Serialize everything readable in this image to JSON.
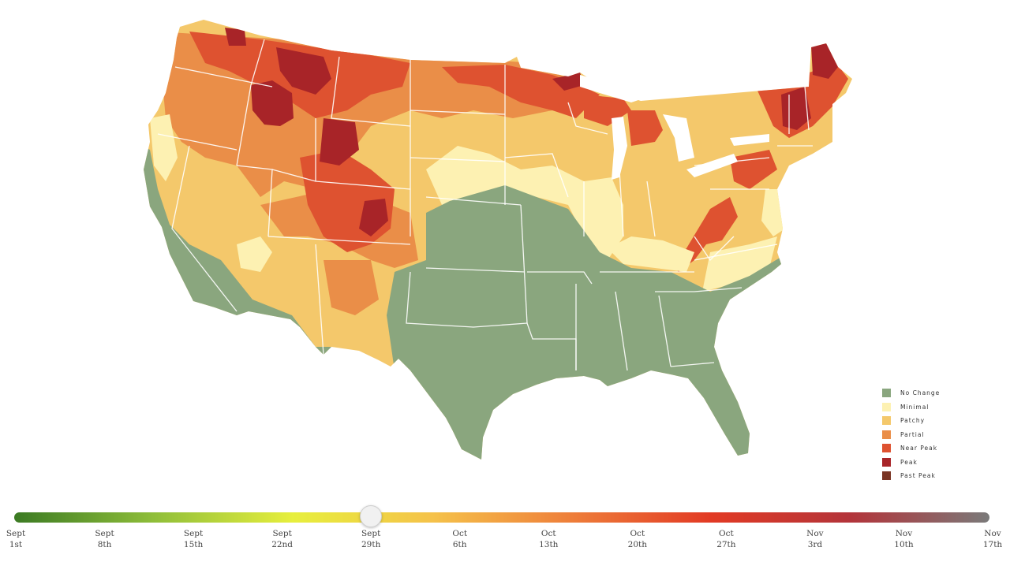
{
  "legend": {
    "items": [
      {
        "label": "No Change",
        "color": "#8aa67e"
      },
      {
        "label": "Minimal",
        "color": "#fdf1b2"
      },
      {
        "label": "Patchy",
        "color": "#f4c86b"
      },
      {
        "label": "Partial",
        "color": "#ea8e48"
      },
      {
        "label": "Near Peak",
        "color": "#de5230"
      },
      {
        "label": "Peak",
        "color": "#a82428"
      },
      {
        "label": "Past Peak",
        "color": "#7a3423"
      }
    ]
  },
  "timeline": {
    "dates": [
      {
        "month": "Sept",
        "day": "1st"
      },
      {
        "month": "Sept",
        "day": "8th"
      },
      {
        "month": "Sept",
        "day": "15th"
      },
      {
        "month": "Sept",
        "day": "22nd"
      },
      {
        "month": "Sept",
        "day": "29th"
      },
      {
        "month": "Oct",
        "day": "6th"
      },
      {
        "month": "Oct",
        "day": "13th"
      },
      {
        "month": "Oct",
        "day": "20th"
      },
      {
        "month": "Oct",
        "day": "27th"
      },
      {
        "month": "Nov",
        "day": "3rd"
      },
      {
        "month": "Nov",
        "day": "10th"
      },
      {
        "month": "Nov",
        "day": "17th"
      }
    ],
    "selected_index": 4,
    "gradient_colors": [
      "#3b7a23",
      "#8fbe3a",
      "#e7ef3d",
      "#f5c24a",
      "#ee7e3a",
      "#e23a24",
      "#b3343a",
      "#7a7a7a"
    ]
  }
}
